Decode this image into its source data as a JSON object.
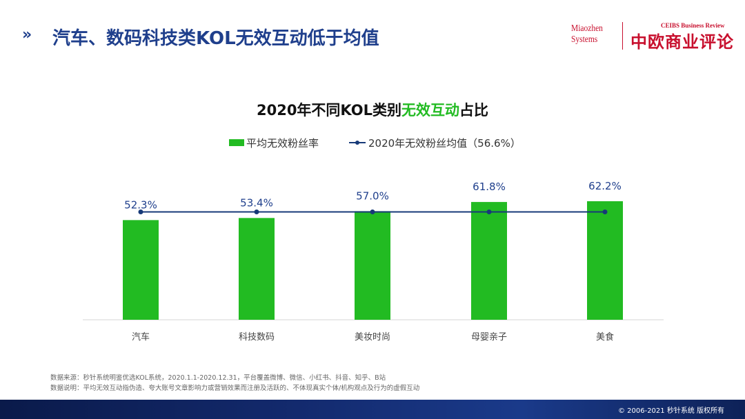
{
  "header": {
    "chevrons": "»",
    "title": "汽车、数码科技类KOL无效互动低于均值",
    "logo_miaozhen_line1": "Miaozhen",
    "logo_miaozhen_line2": "Systems",
    "logo_ceibs_sub": "CEIBS Business Review",
    "logo_ceibs_main": "中欧商业评论",
    "brand_color": "#c8102e"
  },
  "chart_data": {
    "type": "bar",
    "title_prefix": "2020年不同KOL类别",
    "title_highlight": "无效互动",
    "title_suffix": "占比",
    "categories": [
      "汽车",
      "科技数码",
      "美妆时尚",
      "母婴亲子",
      "美食"
    ],
    "series": [
      {
        "name": "平均无效粉丝率",
        "type": "bar",
        "color": "#22bb22",
        "values": [
          52.3,
          53.4,
          57.0,
          61.8,
          62.2
        ],
        "labels": [
          "52.3%",
          "53.4%",
          "57.0%",
          "61.8%",
          "62.2%"
        ]
      },
      {
        "name": "2020年无效粉丝均值（56.6%）",
        "type": "line",
        "color": "#173a78",
        "values": [
          56.6,
          56.6,
          56.6,
          56.6,
          56.6
        ]
      }
    ],
    "ylim": [
      0,
      62.2
    ],
    "label_color": "#1f3f8c",
    "grid": false,
    "legend_position": "top"
  },
  "footnotes": {
    "source": "数据来源：秒针系统明鉴优选KOL系统，2020.1.1-2020.12.31，平台覆盖微博、微信、小红书、抖音、知乎、B站",
    "note": "数据说明：平均无效互动指伪造、夸大账号文章影响力或营销效果而注册及活跃的、不体现真实个体/机构观点及行为的虚假互动"
  },
  "footer": {
    "copyright": "© 2006-2021  秒针系统 版权所有"
  }
}
